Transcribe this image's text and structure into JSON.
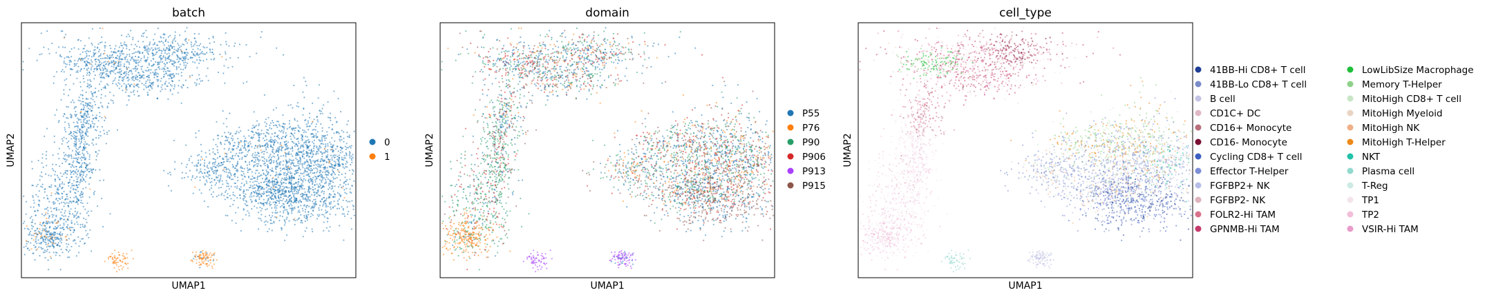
{
  "chart_data": [
    {
      "type": "scatter",
      "title": "batch",
      "xlabel": "UMAP1",
      "ylabel": "UMAP2",
      "grid": false,
      "legend_placement": "right",
      "legend_columns": 1,
      "series": [
        {
          "name": "0",
          "color": "#1f77b4"
        },
        {
          "name": "1",
          "color": "#ff7f0e"
        }
      ]
    },
    {
      "type": "scatter",
      "title": "domain",
      "xlabel": "UMAP1",
      "ylabel": "UMAP2",
      "grid": false,
      "legend_placement": "right",
      "legend_columns": 1,
      "series": [
        {
          "name": "P55",
          "color": "#1f77b4"
        },
        {
          "name": "P76",
          "color": "#ff7f0e"
        },
        {
          "name": "P90",
          "color": "#279e68"
        },
        {
          "name": "P906",
          "color": "#d62728"
        },
        {
          "name": "P913",
          "color": "#aa40fc"
        },
        {
          "name": "P915",
          "color": "#8c564b"
        }
      ]
    },
    {
      "type": "scatter",
      "title": "cell_type",
      "xlabel": "UMAP1",
      "ylabel": "UMAP2",
      "grid": false,
      "legend_placement": "right",
      "legend_columns": 2,
      "series": [
        {
          "name": "41BB-Hi CD8+ T cell",
          "color": "#1f3f96"
        },
        {
          "name": "41BB-Lo CD8+ T cell",
          "color": "#7b8cc9"
        },
        {
          "name": "B cell",
          "color": "#c3c4e3"
        },
        {
          "name": "CD1C+ DC",
          "color": "#e0b8c4"
        },
        {
          "name": "CD16+ Monocyte",
          "color": "#b86f7c"
        },
        {
          "name": "CD16- Monocyte",
          "color": "#7a0f32"
        },
        {
          "name": "Cycling CD8+ T cell",
          "color": "#3d5fc2"
        },
        {
          "name": "Effector T-Helper",
          "color": "#7f8fd6"
        },
        {
          "name": "FGFBP2+ NK",
          "color": "#b8bde8"
        },
        {
          "name": "FGFBP2- NK",
          "color": "#ddb3bd"
        },
        {
          "name": "FOLR2-Hi TAM",
          "color": "#d9728c"
        },
        {
          "name": "GPNMB-Hi TAM",
          "color": "#c43c6c"
        },
        {
          "name": "LowLibSize Macrophage",
          "color": "#1fbf3a"
        },
        {
          "name": "Memory T-Helper",
          "color": "#8fd18a"
        },
        {
          "name": "MitoHigh CD8+ T cell",
          "color": "#c8e6c6"
        },
        {
          "name": "MitoHigh Myeloid",
          "color": "#e9d4c3"
        },
        {
          "name": "MitoHigh NK",
          "color": "#efb088"
        },
        {
          "name": "MitoHigh T-Helper",
          "color": "#ec8a1c"
        },
        {
          "name": "NKT",
          "color": "#21c2a8"
        },
        {
          "name": "Plasma cell",
          "color": "#92d9cf"
        },
        {
          "name": "T-Reg",
          "color": "#cdeae4"
        },
        {
          "name": "TP1",
          "color": "#f3e4ec"
        },
        {
          "name": "TP2",
          "color": "#f2bed8"
        },
        {
          "name": "VSIR-Hi TAM",
          "color": "#e99ccb"
        }
      ]
    }
  ]
}
